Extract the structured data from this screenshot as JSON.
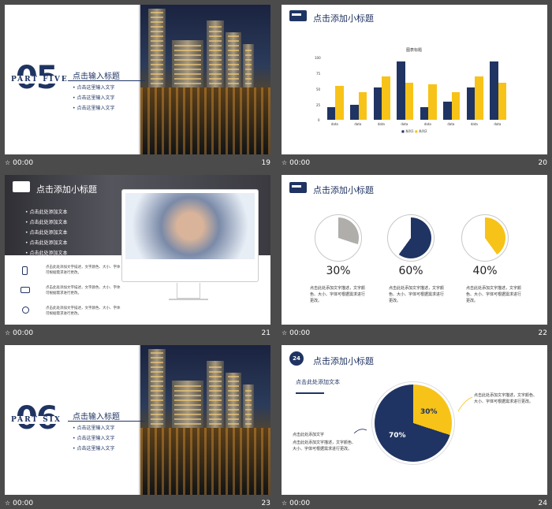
{
  "slides": [
    {
      "num": "19",
      "time": "00:00",
      "part_num": "05",
      "part_label": "PART FIVE",
      "title": "点击输入标题",
      "items": [
        "点击这里输入文字",
        "点击这里输入文字",
        "点击这里输入文字"
      ]
    },
    {
      "num": "20",
      "time": "00:00",
      "title": "点击添加小标题",
      "chart_title": "图表标题",
      "legend": [
        "系列1",
        "系列2"
      ]
    },
    {
      "num": "21",
      "time": "00:00",
      "title": "点击添加小标题",
      "items": [
        "点击此处添加文本",
        "点击此处添加文本",
        "点击此处添加文本",
        "点击此处添加文本",
        "点击此处添加文本"
      ],
      "features": [
        "点击此处添加文字描述，文字颜色、大小、字体可根据需求进行更改。",
        "点击此处添加文字描述，文字颜色、大小、字体可根据需求进行更改。",
        "点击此处添加文字描述，文字颜色、大小、字体可根据需求进行更改。"
      ]
    },
    {
      "num": "22",
      "time": "00:00",
      "title": "点击添加小标题",
      "pies": [
        {
          "pct": "30%",
          "value": 30,
          "color": "#b0aeab",
          "desc": "点击此处添加文字描述，文字颜色、大小、字体可根据需求进行更改。"
        },
        {
          "pct": "60%",
          "value": 60,
          "color": "#1f3462",
          "desc": "点击此处添加文字描述，文字颜色、大小、字体可根据需求进行更改。"
        },
        {
          "pct": "40%",
          "value": 40,
          "color": "#f7c318",
          "desc": "点击此处添加文字描述，文字颜色、大小、字体可根据需求进行更改。"
        }
      ]
    },
    {
      "num": "23",
      "time": "00:00",
      "part_num": "06",
      "part_label": "PART SIX",
      "title": "点击输入标题",
      "items": [
        "点击这里输入文字",
        "点击这里输入文字",
        "点击这里输入文字"
      ]
    },
    {
      "num": "24",
      "time": "00:00",
      "title": "点击添加小标题",
      "subtitle": "点击此处添加文本",
      "left_title": "点击此处添加文字",
      "left_desc": "点击此处添加文字描述，文字颜色、大小、字体可根据需求进行更改。",
      "right_desc": "点击此处添加文字描述，文字颜色、大小、字体可根据需求进行更改。",
      "pie_labels": [
        "30%",
        "70%"
      ],
      "icon_label": "24"
    }
  ],
  "chart_data": [
    {
      "type": "bar",
      "title": "图表标题",
      "categories": [
        "data",
        "data",
        "data",
        "data",
        "data",
        "data",
        "data",
        "data"
      ],
      "series": [
        {
          "name": "系列1",
          "color": "#1f3462",
          "values": [
            20,
            25,
            52,
            95,
            20,
            30,
            52,
            95
          ]
        },
        {
          "name": "系列2",
          "color": "#f7c318",
          "values": [
            55,
            45,
            70,
            60,
            58,
            45,
            70,
            60
          ]
        }
      ],
      "ylim": [
        0,
        100
      ],
      "yticks": [
        "100",
        "75",
        "50",
        "25",
        "0"
      ]
    },
    {
      "type": "pie",
      "labels": [
        "30%",
        "70%"
      ],
      "values": [
        30,
        70
      ],
      "colors": [
        "#f7c318",
        "#1f3462"
      ]
    }
  ],
  "colors": {
    "navy": "#1f3462",
    "yellow": "#f7c318",
    "gray": "#b0aeab",
    "background": "#4b4b4b"
  }
}
